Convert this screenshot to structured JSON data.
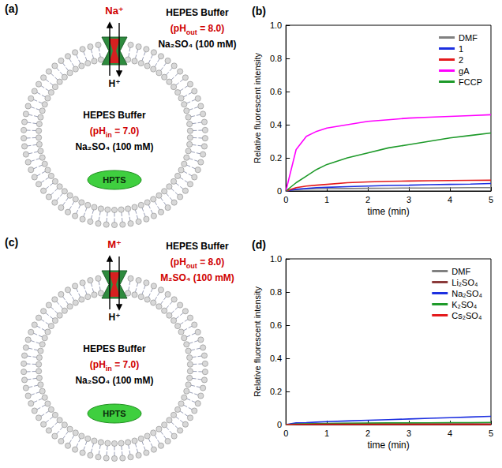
{
  "chart_data": [
    {
      "type": "line",
      "title": "(b)",
      "x_label": "time (min)",
      "y_label": "Relative fluorescent intensity",
      "x": [
        0,
        0.25,
        0.5,
        0.75,
        1,
        1.5,
        2,
        2.5,
        3,
        3.5,
        4,
        4.5,
        5
      ],
      "series": [
        {
          "name": "DMF",
          "color": "#808080",
          "values": [
            0,
            0.01,
            0.012,
            0.013,
            0.014,
            0.015,
            0.016,
            0.017,
            0.018,
            0.018,
            0.019,
            0.02,
            0.02
          ]
        },
        {
          "name": "1",
          "color": "#1c2fe0",
          "values": [
            0,
            0.01,
            0.015,
            0.02,
            0.022,
            0.026,
            0.03,
            0.033,
            0.035,
            0.038,
            0.04,
            0.042,
            0.045
          ]
        },
        {
          "name": "2",
          "color": "#e41a1c",
          "values": [
            0,
            0.02,
            0.03,
            0.035,
            0.04,
            0.05,
            0.055,
            0.058,
            0.06,
            0.062,
            0.063,
            0.064,
            0.065
          ]
        },
        {
          "name": "gA",
          "color": "#ff00ff",
          "values": [
            0,
            0.25,
            0.33,
            0.36,
            0.38,
            0.4,
            0.42,
            0.43,
            0.44,
            0.445,
            0.45,
            0.455,
            0.46
          ]
        },
        {
          "name": "FCCP",
          "color": "#1e9a2a",
          "values": [
            0,
            0.05,
            0.09,
            0.13,
            0.16,
            0.2,
            0.23,
            0.26,
            0.28,
            0.3,
            0.32,
            0.335,
            0.35
          ]
        }
      ],
      "xlim": [
        0,
        5
      ],
      "xticks": [
        0,
        1,
        2,
        3,
        4,
        5
      ],
      "ylim": [
        0,
        1
      ],
      "yticks": [
        0,
        0.2,
        0.4,
        0.6,
        0.8,
        {
          "value": 1,
          "label": "1.0"
        }
      ],
      "grid": false,
      "legend": "top-right"
    },
    {
      "type": "line",
      "title": "(d)",
      "x_label": "time (min)",
      "y_label": "Relative fluorescent intensity",
      "x": [
        0,
        0.25,
        0.5,
        0.75,
        1,
        1.5,
        2,
        2.5,
        3,
        3.5,
        4,
        4.5,
        5
      ],
      "series": [
        {
          "name": "DMF",
          "color": "#808080",
          "values": [
            0,
            0.004,
            0.005,
            0.006,
            0.006,
            0.007,
            0.007,
            0.008,
            0.008,
            0.008,
            0.009,
            0.009,
            0.01
          ]
        },
        {
          "name": "Li₂SO₄",
          "color": "#8b3a3a",
          "values": [
            0,
            0.002,
            0.002,
            0.001,
            0.001,
            0.001,
            0.001,
            0.001,
            0.001,
            0.001,
            0.001,
            0.001,
            0.001
          ]
        },
        {
          "name": "Na₂SO₄",
          "color": "#1c2fe0",
          "values": [
            0,
            0.01,
            0.012,
            0.015,
            0.018,
            0.022,
            0.026,
            0.03,
            0.034,
            0.038,
            0.042,
            0.046,
            0.05
          ]
        },
        {
          "name": "K₂SO₄",
          "color": "#1e9a2a",
          "values": [
            0,
            0.003,
            0.005,
            0.006,
            0.007,
            0.008,
            0.009,
            0.01,
            0.01,
            0.011,
            0.012,
            0.012,
            0.013
          ]
        },
        {
          "name": "Cs₂SO₄",
          "color": "#e41a1c",
          "values": [
            0,
            0.001,
            0.001,
            0.002,
            0.002,
            0.002,
            0.002,
            0.002,
            0.002,
            0.002,
            0.002,
            0.002,
            0.002
          ]
        }
      ],
      "xlim": [
        0,
        5
      ],
      "xticks": [
        0,
        1,
        2,
        3,
        4,
        5
      ],
      "ylim": [
        0,
        1
      ],
      "yticks": [
        0,
        0.2,
        0.4,
        0.6,
        0.8,
        {
          "value": 1,
          "label": "1.0"
        }
      ],
      "grid": false,
      "legend": "top-right"
    }
  ],
  "diagrams": [
    {
      "panel": "(a)",
      "ion_out": "Na⁺",
      "ion_in": "H⁺",
      "outside": {
        "buffer": "HEPES Buffer",
        "ph": {
          "prefix": "(pH",
          "sub": "out",
          "suffix": " = 8.0)"
        },
        "salt": "Na₂SO₄ (100 mM)",
        "salt_color": "#000000"
      },
      "inside": {
        "buffer": "HEPES Buffer",
        "ph": {
          "prefix": "(pH",
          "sub": "in",
          "suffix": " = 7.0)"
        },
        "salt": "Na₂SO₄ (100 mM)"
      },
      "dye": "HPTS"
    },
    {
      "panel": "(c)",
      "ion_out": "M⁺",
      "ion_in": "H⁺",
      "outside": {
        "buffer": "HEPES Buffer",
        "ph": {
          "prefix": "(pH",
          "sub": "out",
          "suffix": " = 8.0)"
        },
        "salt": "M₂SO₄ (100 mM)",
        "salt_color": "#d00000"
      },
      "inside": {
        "buffer": "HEPES Buffer",
        "ph": {
          "prefix": "(pH",
          "sub": "in",
          "suffix": " = 7.0)"
        },
        "salt": "Na₂SO₄ (100 mM)"
      },
      "dye": "HPTS"
    }
  ]
}
